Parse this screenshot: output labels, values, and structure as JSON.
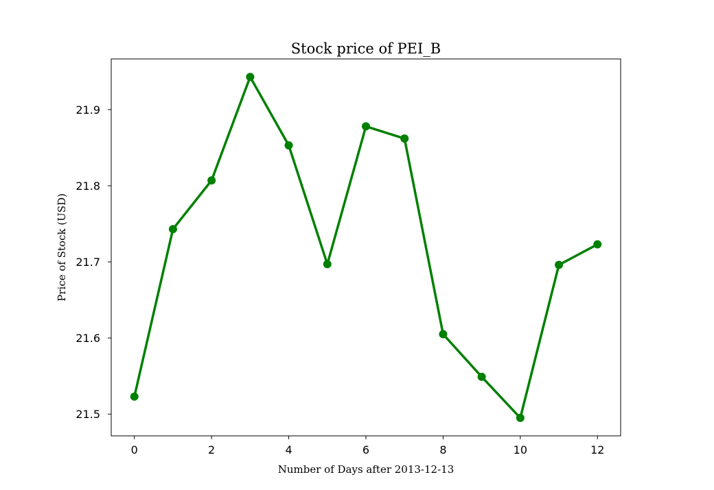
{
  "chart_data": {
    "type": "line",
    "title": "Stock price of PEI_B",
    "xlabel": "Number of Days after 2013-12-13",
    "ylabel": "Price of Stock (USD)",
    "x": [
      0,
      1,
      2,
      3,
      4,
      5,
      6,
      7,
      8,
      9,
      10,
      11,
      12
    ],
    "series": [
      {
        "values": [
          21.523,
          21.743,
          21.807,
          21.943,
          21.853,
          21.697,
          21.878,
          21.862,
          21.605,
          21.549,
          21.495,
          21.696,
          21.723
        ],
        "color": "#008000",
        "marker": "circle"
      }
    ],
    "xlim": [
      -0.6,
      12.6
    ],
    "ylim": [
      21.4714,
      21.9666
    ],
    "xticks": [
      0,
      2,
      4,
      6,
      8,
      10,
      12
    ],
    "yticks": [
      21.5,
      21.6,
      21.7,
      21.8,
      21.9
    ],
    "ytick_labels": [
      "21.5",
      "21.6",
      "21.7",
      "21.8",
      "21.9"
    ],
    "grid": false
  }
}
